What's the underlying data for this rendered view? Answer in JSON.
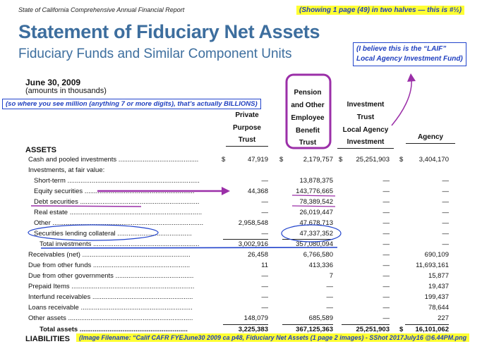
{
  "header": {
    "report_line": "State of California Comprehensive Annual Financial Report",
    "page_note": "(Showing 1 page (49) in two halves — this is #½)"
  },
  "title": "Statement of Fiduciary Net Assets",
  "subtitle": "Fiduciary Funds and Similar Component Units",
  "laif_note": {
    "line1": "(I believe this is the “LAIF”",
    "line2": "Local Agency Investment Fund)"
  },
  "date": "June 30, 2009",
  "units": "(amounts in thousands)",
  "billions_note": "(so where you see million (anything 7 or more digits), that’s actually BILLIONS)",
  "columns": {
    "private": [
      "Private",
      "Purpose",
      "Trust"
    ],
    "pension": [
      "Pension",
      "and Other",
      "Employee",
      "Benefit",
      "Trust"
    ],
    "investment": [
      "Investment",
      "Trust",
      "Local Agency",
      "Investment"
    ],
    "agency": [
      "Agency"
    ]
  },
  "sections": {
    "assets": "ASSETS",
    "liabilities": "LIABILITIES"
  },
  "dollar_sign": "$",
  "rows": {
    "cash": {
      "label": "Cash and pooled investments ...........................................",
      "private": "47,919",
      "pension": "2,179,757",
      "investment": "25,251,903",
      "agency": "3,404,170"
    },
    "invest_fv": {
      "label": "Investments, at fair value:"
    },
    "short_term": {
      "label": "Short-term .......................................................................",
      "private": "—",
      "pension": "13,878,375",
      "investment": "—",
      "agency": "—"
    },
    "equity": {
      "label": "Equity securities ...........................................................",
      "private": "44,368",
      "pension": "143,776,665",
      "investment": "—",
      "agency": "—"
    },
    "debt": {
      "label": "Debt securities ................................................................",
      "private": "—",
      "pension": "78,389,542",
      "investment": "—",
      "agency": "—"
    },
    "real_estate": {
      "label": "Real estate .......................................................................",
      "private": "—",
      "pension": "26,019,447",
      "investment": "—",
      "agency": "—"
    },
    "other": {
      "label": "Other .................................................................................",
      "private": "2,958,548",
      "pension": "47,678,713",
      "investment": "—",
      "agency": "—"
    },
    "sec_lending": {
      "label": "Securities lending collateral ........................................",
      "private": "—",
      "pension": "47,337,352",
      "investment": "—",
      "agency": "—"
    },
    "total_inv": {
      "label": "Total investments .........................................................",
      "private": "3,002,916",
      "pension": "357,080,094",
      "investment": "—",
      "agency": "—"
    },
    "receivables": {
      "label": "Receivables (net) ..........................................................",
      "private": "26,458",
      "pension": "6,766,580",
      "investment": "—",
      "agency": "690,109"
    },
    "due_funds": {
      "label": "Due from other funds ....................................................",
      "private": "11",
      "pension": "413,336",
      "investment": "—",
      "agency": "11,693,161"
    },
    "due_govts": {
      "label": "Due from other governments ..........................................",
      "private": "—",
      "pension": "7",
      "investment": "—",
      "agency": "15,877"
    },
    "prepaid": {
      "label": "Prepaid Items ..................................................................",
      "private": "—",
      "pension": "—",
      "investment": "—",
      "agency": "19,437"
    },
    "interfund": {
      "label": "Interfund receivables ......................................................",
      "private": "—",
      "pension": "—",
      "investment": "—",
      "agency": "199,437"
    },
    "loans": {
      "label": "Loans receivable ............................................................",
      "private": "—",
      "pension": "—",
      "investment": "—",
      "agency": "78,644"
    },
    "other_assets": {
      "label": "Other assets ...................................................................",
      "private": "148,079",
      "pension": "685,589",
      "investment": "—",
      "agency": "227"
    },
    "total_assets": {
      "label": "Total assets ..........................................................",
      "private": "3,225,383",
      "pension": "367,125,363",
      "investment": "25,251,903",
      "agency": "16,101,062"
    }
  },
  "filename_note": "(Image Filename: “Calif CAFR FYEJune30 2009  ca p48, Fiduciary Net Assets (1 page 2 images) - SShot 2017July16 @6.44PM.png",
  "colors": {
    "title_blue": "#3d6e9e",
    "highlight_yellow": "#ffff33",
    "note_blue": "#1f3fbf",
    "annotation_purple": "#9b2fa8"
  }
}
